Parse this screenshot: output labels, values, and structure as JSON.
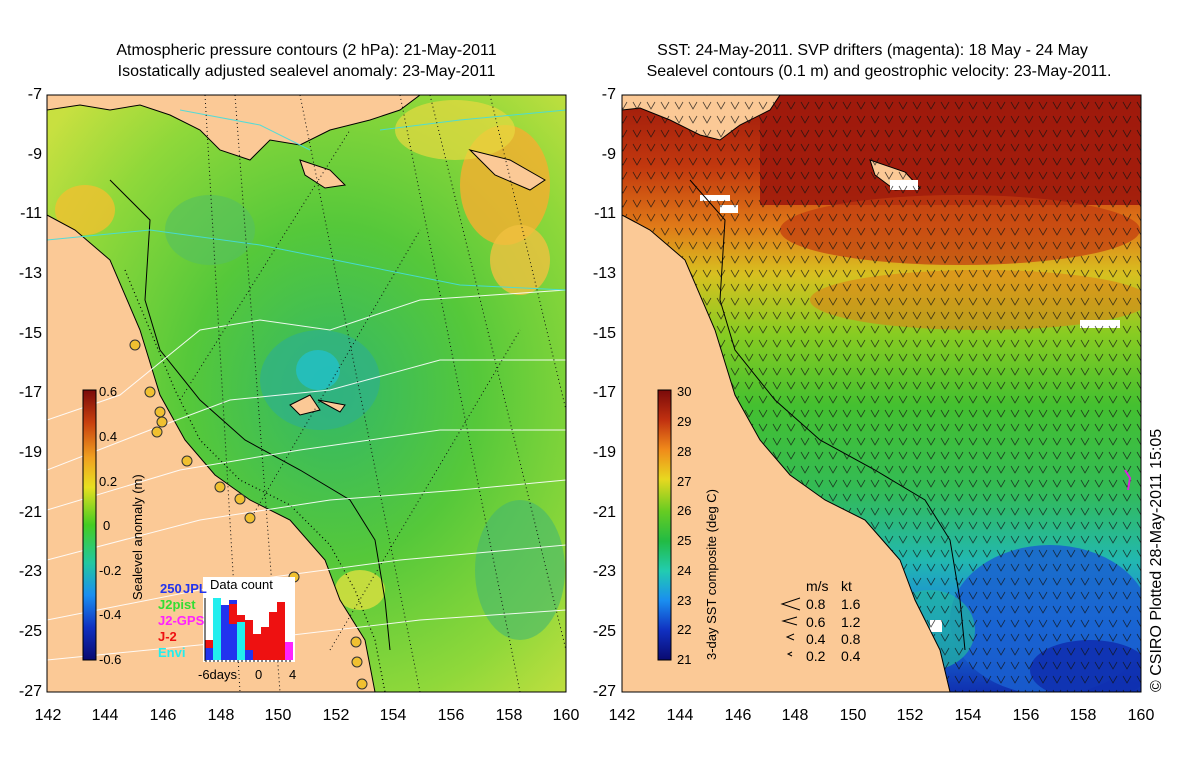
{
  "left_panel": {
    "title_line1": "Atmospheric pressure contours (2 hPa): 21-May-2011",
    "title_line2": "Isostatically adjusted sealevel anomaly: 23-May-2011",
    "colorbar_label": "Sealevel anomaly (m)",
    "colorbar_ticks": [
      "0.6",
      "0.4",
      "0.2",
      "0",
      "-0.2",
      "-0.4",
      "-0.6"
    ],
    "inset": {
      "title": "Data count",
      "legend_count": "250",
      "legend": [
        {
          "label": "JPL",
          "color": "#2233ee"
        },
        {
          "label": "J2pist",
          "color": "#33dd33"
        },
        {
          "label": "J2-GPS",
          "color": "#ff22ff"
        },
        {
          "label": "J-2",
          "color": "#ee1111"
        },
        {
          "label": "Envi",
          "color": "#22eeee"
        }
      ],
      "xtick_left": "-6days",
      "xtick_mid": "0",
      "xtick_right": "4"
    }
  },
  "right_panel": {
    "title_line1": "SST: 24-May-2011. SVP drifters (magenta): 18 May - 24 May",
    "title_line2": "Sealevel contours (0.1 m) and geostrophic velocity: 23-May-2011.",
    "colorbar_label": "3-day SST composite (deg C)",
    "colorbar_ticks": [
      "30",
      "29",
      "28",
      "27",
      "26",
      "25",
      "24",
      "23",
      "22",
      "21"
    ],
    "velocity_legend": {
      "header_ms": "m/s",
      "header_kt": "kt",
      "rows": [
        {
          "ms": "0.8",
          "kt": "1.6"
        },
        {
          "ms": "0.6",
          "kt": "1.2"
        },
        {
          "ms": "0.4",
          "kt": "0.8"
        },
        {
          "ms": "0.2",
          "kt": "0.4"
        }
      ]
    }
  },
  "axes": {
    "x_ticks": [
      "142",
      "144",
      "146",
      "148",
      "150",
      "152",
      "154",
      "156",
      "158",
      "160"
    ],
    "y_ticks": [
      "-7",
      "-9",
      "-11",
      "-13",
      "-15",
      "-17",
      "-19",
      "-21",
      "-23",
      "-25",
      "-27"
    ]
  },
  "credit": "© CSIRO Plotted 28-May-2011 15:05",
  "colors": {
    "land": "#fbc996",
    "ssh_mid": "#66cc33",
    "sst_warm": "#a11a0a",
    "sst_cool": "#1f6fd0"
  }
}
